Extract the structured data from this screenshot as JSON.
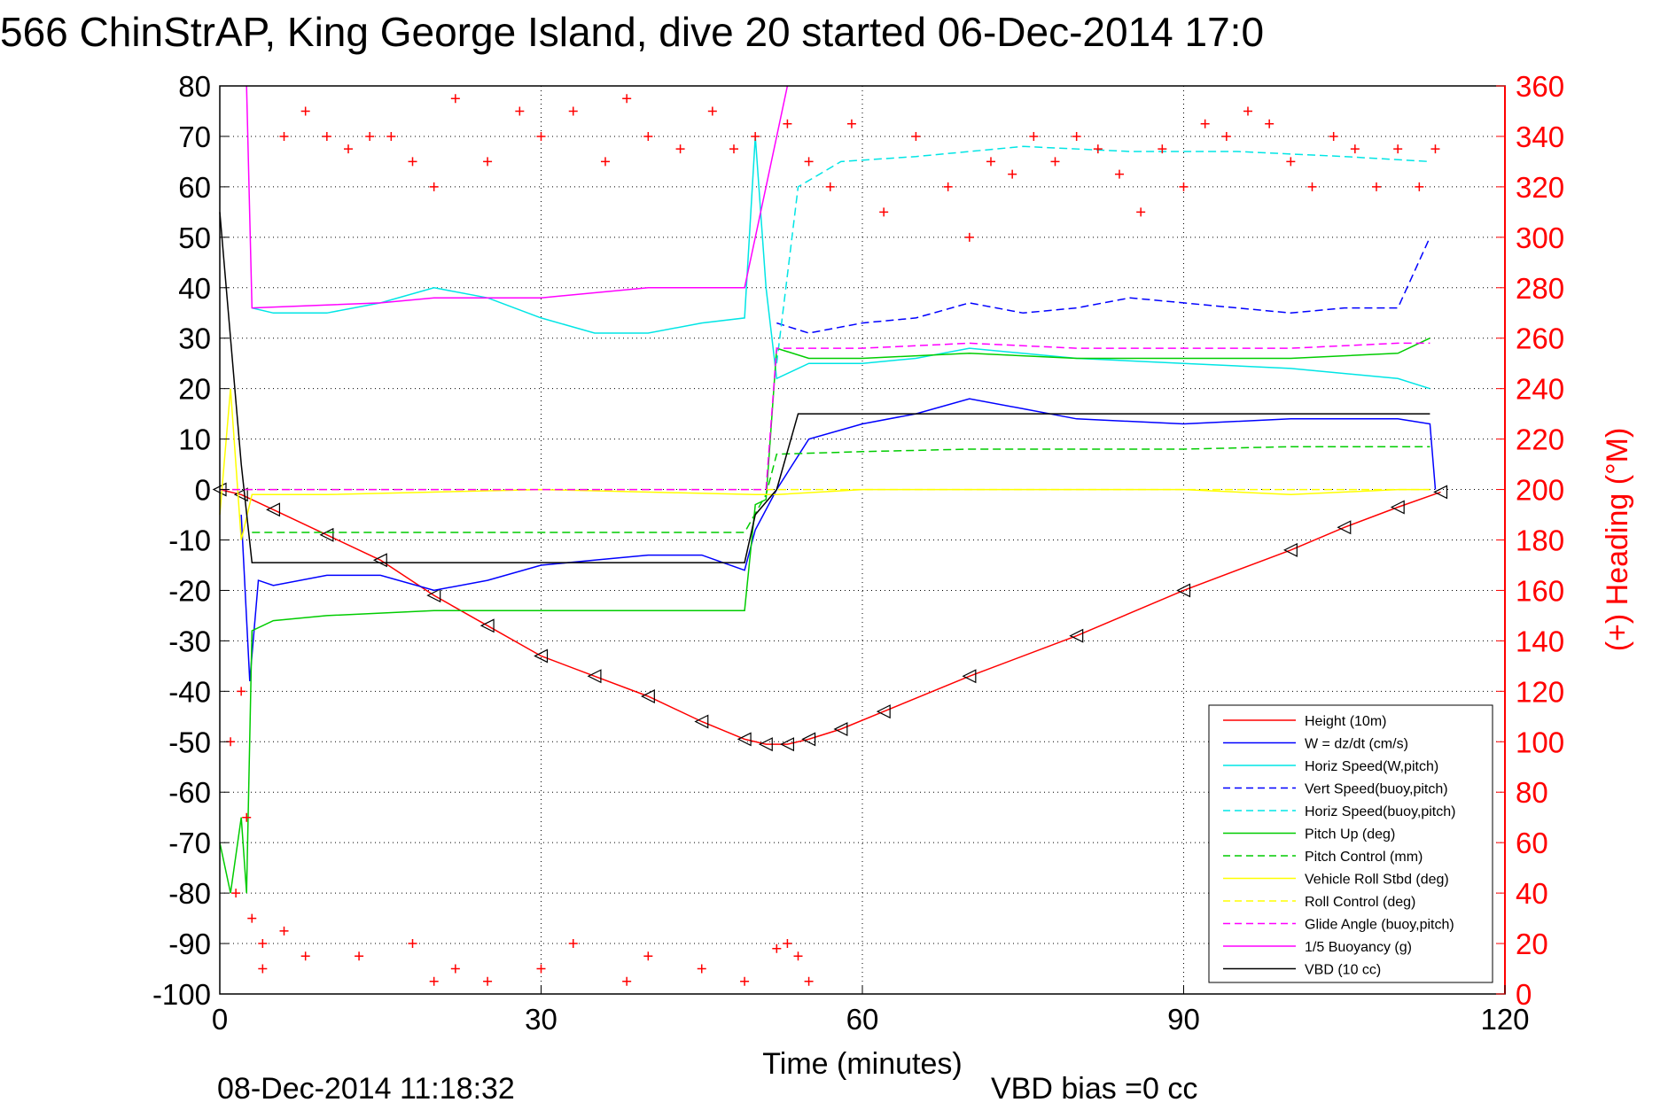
{
  "chart_data": {
    "type": "line",
    "title": "566 ChinStrAP, King George Island, dive 20 started 06-Dec-2014 17:0",
    "xlabel": "Time (minutes)",
    "ylabel": "",
    "y2label": "(+) Heading (°M)",
    "xlim": [
      0,
      120
    ],
    "ylim": [
      -100,
      80
    ],
    "y2lim": [
      0,
      360
    ],
    "xticks": [
      "0",
      "30",
      "60",
      "90",
      "120"
    ],
    "yticks": [
      "80",
      "70",
      "60",
      "50",
      "40",
      "30",
      "20",
      "10",
      "0",
      "-10",
      "-20",
      "-30",
      "-40",
      "-50",
      "-60",
      "-70",
      "-80",
      "-90",
      "-100"
    ],
    "y2ticks": [
      "360",
      "340",
      "320",
      "300",
      "280",
      "260",
      "240",
      "220",
      "200",
      "180",
      "160",
      "140",
      "120",
      "100",
      "80",
      "60",
      "40",
      "20",
      "0"
    ],
    "grid": true,
    "legend_position": "bottom-right",
    "footer_left": "08-Dec-2014 11:18:32",
    "footer_right": "VBD bias =0 cc",
    "series": [
      {
        "name": "Height (10m)",
        "color": "#ff0000",
        "style": "solid",
        "marker": "triangle",
        "x": [
          0,
          2,
          5,
          10,
          15,
          20,
          25,
          30,
          35,
          40,
          45,
          49,
          51,
          53,
          55,
          58,
          62,
          70,
          80,
          90,
          100,
          105,
          110,
          114
        ],
        "y": [
          0,
          -1,
          -4,
          -9,
          -14,
          -21,
          -27,
          -33,
          -37,
          -41,
          -46,
          -49.5,
          -50.5,
          -50.5,
          -49.5,
          -47.5,
          -44,
          -37,
          -29,
          -20,
          -12,
          -7.5,
          -3.5,
          -0.5
        ]
      },
      {
        "name": "W = dz/dt (cm/s)",
        "color": "#0000ff",
        "style": "solid",
        "x": [
          2,
          2.8,
          3.6,
          5,
          10,
          15,
          20,
          25,
          30,
          35,
          40,
          45,
          49,
          50,
          52,
          55,
          60,
          65,
          70,
          75,
          80,
          90,
          100,
          110,
          113,
          113.5
        ],
        "y": [
          -5,
          -38,
          -18,
          -19,
          -17,
          -17,
          -20,
          -18,
          -15,
          -14,
          -13,
          -13,
          -16,
          -8,
          0,
          10,
          13,
          15,
          18,
          16,
          14,
          13,
          14,
          14,
          13,
          0
        ]
      },
      {
        "name": "Horiz Speed(W,pitch)",
        "color": "#00e5e5",
        "style": "solid",
        "x": [
          3,
          5,
          10,
          15,
          20,
          25,
          30,
          35,
          40,
          45,
          49,
          50,
          51,
          52,
          55,
          60,
          65,
          70,
          80,
          90,
          100,
          110,
          113
        ],
        "y": [
          36,
          35,
          35,
          37,
          40,
          38,
          34,
          31,
          31,
          33,
          34,
          70,
          40,
          22,
          25,
          25,
          26,
          28,
          26,
          25,
          24,
          22,
          20
        ]
      },
      {
        "name": "Vert Speed(buoy,pitch)",
        "color": "#0000ff",
        "style": "dashed",
        "x": [
          52,
          55,
          60,
          65,
          70,
          75,
          80,
          85,
          90,
          95,
          100,
          105,
          110,
          113
        ],
        "y": [
          33,
          31,
          33,
          34,
          37,
          35,
          36,
          38,
          37,
          36,
          35,
          36,
          36,
          50
        ]
      },
      {
        "name": "Horiz Speed(buoy,pitch)",
        "color": "#00e5e5",
        "style": "dashed",
        "x": [
          52,
          54,
          58,
          65,
          75,
          85,
          95,
          105,
          113
        ],
        "y": [
          25,
          60,
          65,
          66,
          68,
          67,
          67,
          66,
          65
        ]
      },
      {
        "name": "Pitch Up (deg)",
        "color": "#00cc00",
        "style": "solid",
        "x": [
          0,
          1,
          2,
          2.5,
          3,
          5,
          10,
          20,
          30,
          40,
          49,
          50,
          51,
          52,
          55,
          60,
          70,
          80,
          90,
          100,
          110,
          113
        ],
        "y": [
          -70,
          -80,
          -65,
          -80,
          -28,
          -26,
          -25,
          -24,
          -24,
          -24,
          -24,
          -3,
          -2,
          28,
          26,
          26,
          27,
          26,
          26,
          26,
          27,
          30
        ]
      },
      {
        "name": "Pitch Control (mm)",
        "color": "#00cc00",
        "style": "dashed",
        "x": [
          3,
          49,
          51,
          52,
          60,
          70,
          80,
          90,
          100,
          110,
          113
        ],
        "y": [
          -8.5,
          -8.5,
          -1,
          7,
          7.5,
          8,
          8,
          8,
          8.5,
          8.5,
          8.5
        ]
      },
      {
        "name": "Vehicle Roll Stbd (deg)",
        "color": "#ffff00",
        "style": "solid",
        "x": [
          0,
          1,
          2,
          3,
          10,
          30,
          50,
          52,
          60,
          70,
          80,
          90,
          100,
          110,
          113
        ],
        "y": [
          -5,
          20,
          -10,
          -1,
          -1,
          0,
          -1,
          -1,
          0,
          0,
          0,
          0,
          -1,
          0,
          0
        ]
      },
      {
        "name": "Roll Control (deg)",
        "color": "#ffff00",
        "style": "dashed",
        "x": [
          0,
          3,
          20,
          50,
          60,
          90,
          113
        ],
        "y": [
          0,
          0,
          0,
          0,
          0,
          0,
          0
        ]
      },
      {
        "name": "Glide Angle (buoy,pitch)",
        "color": "#ff00ff",
        "style": "dashed",
        "x": [
          0,
          51,
          52,
          60,
          70,
          80,
          90,
          100,
          110,
          113
        ],
        "y": [
          0,
          0,
          28,
          28,
          29,
          28,
          28,
          28,
          29,
          29
        ]
      },
      {
        "name": "1/5 Buoyancy (g)",
        "color": "#ff00ff",
        "style": "solid",
        "x": [
          2.5,
          3,
          15,
          20,
          30,
          40,
          49,
          51,
          53
        ],
        "y": [
          80,
          36,
          37,
          38,
          38,
          40,
          40,
          60,
          80
        ]
      },
      {
        "name": "VBD (10 cc)",
        "color": "#000000",
        "style": "solid",
        "x": [
          0,
          1,
          2,
          3,
          49,
          50,
          52,
          54,
          67,
          113
        ],
        "y": [
          55,
          30,
          5,
          -14.5,
          -14.5,
          -5,
          0,
          15,
          15,
          15
        ]
      }
    ],
    "heading_series": {
      "name": "(+) Heading (°M)",
      "color": "#ff0000",
      "marker": "plus",
      "x": [
        1,
        1.5,
        2,
        2.5,
        3,
        4,
        6,
        8,
        10,
        12,
        14,
        16,
        18,
        20,
        22,
        25,
        28,
        30,
        33,
        36,
        38,
        40,
        43,
        46,
        48,
        50,
        53,
        55,
        57,
        59,
        62,
        65,
        68,
        70,
        72,
        74,
        76,
        78,
        80,
        82,
        84,
        86,
        88,
        90,
        92,
        94,
        96,
        98,
        100,
        102,
        104,
        106,
        108,
        110,
        112,
        113.5
      ],
      "y": [
        100,
        40,
        120,
        70,
        30,
        10,
        340,
        350,
        340,
        335,
        340,
        340,
        330,
        320,
        355,
        330,
        350,
        340,
        350,
        330,
        355,
        340,
        335,
        350,
        335,
        340,
        345,
        330,
        320,
        345,
        310,
        340,
        320,
        300,
        330,
        325,
        340,
        330,
        340,
        335,
        325,
        310,
        335,
        320,
        345,
        340,
        350,
        345,
        330,
        320,
        340,
        335,
        320,
        335,
        320,
        335
      ]
    },
    "heading_low_series": {
      "name": "(+) Heading (°M) near 0°",
      "color": "#ff0000",
      "marker": "plus",
      "x": [
        4,
        6,
        8,
        13,
        18,
        20,
        22,
        25,
        30,
        33,
        38,
        40,
        45,
        49,
        52,
        53,
        54,
        55
      ],
      "y": [
        20,
        25,
        15,
        15,
        20,
        5,
        10,
        5,
        10,
        20,
        5,
        15,
        10,
        5,
        18,
        20,
        15,
        5
      ]
    }
  },
  "legend_items": [
    {
      "label": "Height (10m)",
      "color": "#ff0000",
      "dash": "solid"
    },
    {
      "label": "W = dz/dt (cm/s)",
      "color": "#0000ff",
      "dash": "solid"
    },
    {
      "label": "Horiz Speed(W,pitch)",
      "color": "#00e5e5",
      "dash": "solid"
    },
    {
      "label": "Vert Speed(buoy,pitch)",
      "color": "#0000ff",
      "dash": "dashed"
    },
    {
      "label": "Horiz Speed(buoy,pitch)",
      "color": "#00e5e5",
      "dash": "dashed"
    },
    {
      "label": "Pitch Up (deg)",
      "color": "#00cc00",
      "dash": "solid"
    },
    {
      "label": "Pitch Control (mm)",
      "color": "#00cc00",
      "dash": "dashed"
    },
    {
      "label": "Vehicle Roll Stbd (deg)",
      "color": "#ffff00",
      "dash": "solid"
    },
    {
      "label": "Roll Control (deg)",
      "color": "#ffff00",
      "dash": "dashed"
    },
    {
      "label": "Glide Angle (buoy,pitch)",
      "color": "#ff00ff",
      "dash": "dashed"
    },
    {
      "label": "1/5 Buoyancy (g)",
      "color": "#ff00ff",
      "dash": "solid"
    },
    {
      "label": "VBD (10 cc)",
      "color": "#000000",
      "dash": "solid"
    }
  ]
}
